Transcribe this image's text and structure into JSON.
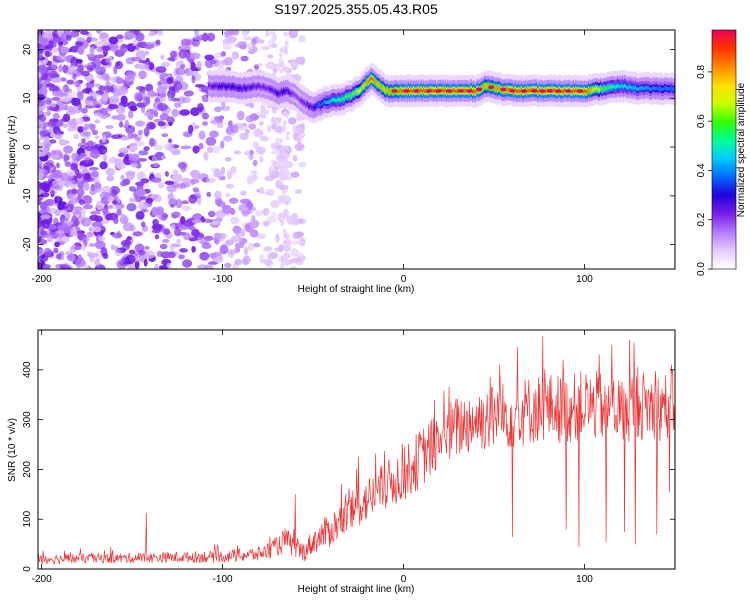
{
  "figure": {
    "title": "S197.2025.355.05.43.R05"
  },
  "chart_data": [
    {
      "type": "heatmap",
      "xlabel": "Height of straight line (km)",
      "ylabel": "Frequency (Hz)",
      "xlim": [
        -202,
        150
      ],
      "ylim": [
        -25,
        24
      ],
      "xticks": [
        -200,
        -100,
        0,
        100
      ],
      "yticks": [
        -20,
        -10,
        0,
        10,
        20
      ],
      "grid": false,
      "colorbar": {
        "label": "Normalized spectral amplitude",
        "range": [
          0,
          0.97
        ],
        "ticks": [
          0.0,
          0.2,
          0.4,
          0.6,
          0.8
        ],
        "colors": [
          "#ffffff",
          "#e6ccff",
          "#b37aff",
          "#7a1fe6",
          "#2200dd",
          "#0066ff",
          "#00ccff",
          "#00ff99",
          "#33ff00",
          "#ccff00",
          "#ffdd00",
          "#ff8800",
          "#ff3300",
          "#ee0055"
        ]
      },
      "ridge": {
        "x": [
          -108,
          -100,
          -90,
          -80,
          -75,
          -70,
          -65,
          -60,
          -55,
          -50,
          -45,
          -40,
          -35,
          -30,
          -25,
          -20,
          -18,
          -15,
          -10,
          -5,
          0,
          20,
          40,
          45,
          60,
          80,
          100,
          110,
          120,
          130,
          140,
          150
        ],
        "y": [
          12.5,
          12.5,
          12.0,
          12.5,
          12.0,
          11.0,
          11.5,
          10.5,
          9.0,
          8.0,
          9.0,
          9.5,
          9.8,
          10.5,
          11.5,
          13.5,
          14.0,
          13.0,
          11.5,
          11.5,
          11.5,
          11.5,
          11.5,
          12.5,
          11.5,
          11.5,
          11.5,
          12.0,
          12.5,
          12.0,
          12.0,
          12.0
        ],
        "amplitude": [
          0.25,
          0.3,
          0.3,
          0.25,
          0.25,
          0.3,
          0.3,
          0.2,
          0.25,
          0.3,
          0.4,
          0.5,
          0.55,
          0.6,
          0.7,
          0.85,
          0.9,
          0.8,
          0.8,
          0.85,
          0.9,
          0.9,
          0.9,
          0.8,
          0.9,
          0.9,
          0.9,
          0.6,
          0.5,
          0.45,
          0.4,
          0.4
        ]
      },
      "noise_region_x": [
        -202,
        -60
      ]
    },
    {
      "type": "line",
      "xlabel": "Height of straight line (km)",
      "ylabel": "SNR (10 * v/v)",
      "xlim": [
        -202,
        150
      ],
      "ylim": [
        0,
        480
      ],
      "xticks": [
        -200,
        -100,
        0,
        100
      ],
      "yticks": [
        0,
        100,
        200,
        300,
        400
      ],
      "grid": false,
      "series": [
        {
          "color": "#ee3333",
          "x": [
            -200,
            -150,
            -100,
            -80,
            -70,
            -65,
            -60,
            -55,
            -50,
            -40,
            -30,
            -20,
            -10,
            0,
            10,
            20,
            30,
            40,
            50,
            60,
            70,
            80,
            90,
            100,
            110,
            120,
            130,
            140,
            150
          ],
          "mean": [
            20,
            22,
            25,
            30,
            45,
            60,
            40,
            35,
            55,
            80,
            110,
            140,
            165,
            190,
            225,
            260,
            285,
            300,
            305,
            310,
            320,
            325,
            320,
            330,
            325,
            320,
            330,
            325,
            330
          ],
          "spread": [
            10,
            10,
            12,
            15,
            20,
            25,
            20,
            20,
            25,
            35,
            40,
            45,
            50,
            55,
            60,
            60,
            65,
            65,
            70,
            70,
            70,
            70,
            70,
            70,
            70,
            70,
            70,
            70,
            70
          ],
          "spikes": [
            {
              "x": -142,
              "y": 112
            },
            {
              "x": -60,
              "y": 150
            },
            {
              "x": -25,
              "y": 225
            },
            {
              "x": 25,
              "y": 365
            },
            {
              "x": 48,
              "y": 385
            },
            {
              "x": 53,
              "y": 410
            },
            {
              "x": 63,
              "y": 445
            },
            {
              "x": 78,
              "y": 400
            },
            {
              "x": 88,
              "y": 420
            },
            {
              "x": 108,
              "y": 430
            },
            {
              "x": 115,
              "y": 450
            },
            {
              "x": 125,
              "y": 460
            },
            {
              "x": 140,
              "y": 475
            },
            {
              "x": 148,
              "y": 410
            }
          ],
          "dips": [
            {
              "x": 60,
              "y": 65
            },
            {
              "x": 90,
              "y": 80
            },
            {
              "x": 97,
              "y": 45
            },
            {
              "x": 112,
              "y": 55
            },
            {
              "x": 122,
              "y": 75
            },
            {
              "x": 128,
              "y": 50
            },
            {
              "x": 140,
              "y": 70
            },
            {
              "x": 147,
              "y": 155
            }
          ]
        }
      ]
    }
  ]
}
